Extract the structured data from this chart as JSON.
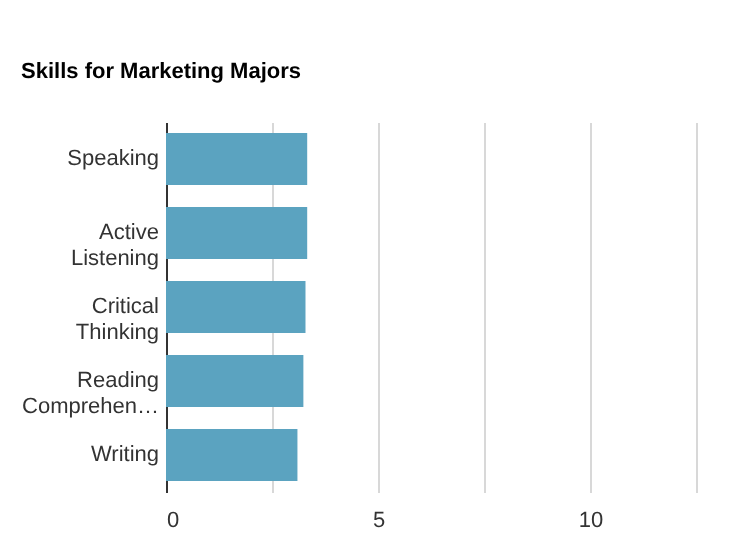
{
  "chart_data": {
    "type": "bar",
    "orientation": "horizontal",
    "title": "Skills for Marketing Majors",
    "categories": [
      "Speaking",
      "Active Listening",
      "Critical Thinking",
      "Reading Comprehen…",
      "Writing"
    ],
    "values": [
      3.33,
      3.33,
      3.29,
      3.24,
      3.1
    ],
    "color": "#5ba3c0",
    "xlim": [
      0,
      12.5
    ],
    "xticks": [
      0,
      {
        "value": 2.5,
        "label": null
      },
      5,
      {
        "value": 7.5,
        "label": null
      },
      10,
      {
        "value": 12.5,
        "label": null
      }
    ],
    "grid": "x"
  }
}
